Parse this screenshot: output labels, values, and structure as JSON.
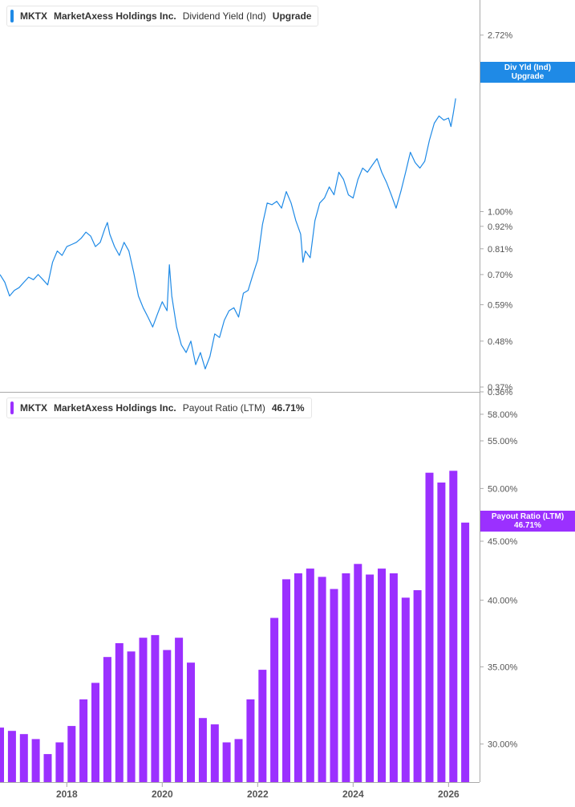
{
  "colors": {
    "yield_line": "#1f8ae6",
    "payout_bar": "#9b30ff",
    "axis_text": "#555555",
    "axis_line": "#aaaaaa"
  },
  "top_panel": {
    "legend": {
      "ticker": "MKTX",
      "company": "MarketAxess Holdings Inc.",
      "metric": "Dividend Yield (Ind)",
      "action": "Upgrade"
    },
    "last_tag": {
      "line1": "Div Yld (Ind)",
      "line2": "Upgrade"
    }
  },
  "bottom_panel": {
    "legend": {
      "ticker": "MKTX",
      "company": "MarketAxess Holdings Inc.",
      "metric": "Payout Ratio (LTM)",
      "value": "46.71%"
    },
    "last_tag": {
      "line1": "Payout Ratio (LTM)",
      "line2": "46.71%"
    }
  },
  "chart_data": [
    {
      "type": "line",
      "series": [
        {
          "name": "Dividend Yield (Ind)",
          "values": [
            [
              2016.6,
              0.7
            ],
            [
              2016.7,
              0.67
            ],
            [
              2016.8,
              0.62
            ],
            [
              2016.9,
              0.64
            ],
            [
              2017.0,
              0.65
            ],
            [
              2017.1,
              0.67
            ],
            [
              2017.2,
              0.69
            ],
            [
              2017.3,
              0.68
            ],
            [
              2017.4,
              0.7
            ],
            [
              2017.5,
              0.68
            ],
            [
              2017.6,
              0.66
            ],
            [
              2017.7,
              0.75
            ],
            [
              2017.8,
              0.8
            ],
            [
              2017.9,
              0.78
            ],
            [
              2018.0,
              0.82
            ],
            [
              2018.1,
              0.83
            ],
            [
              2018.2,
              0.84
            ],
            [
              2018.3,
              0.86
            ],
            [
              2018.4,
              0.89
            ],
            [
              2018.5,
              0.87
            ],
            [
              2018.6,
              0.82
            ],
            [
              2018.7,
              0.84
            ],
            [
              2018.8,
              0.91
            ],
            [
              2018.85,
              0.94
            ],
            [
              2018.9,
              0.88
            ],
            [
              2019.0,
              0.82
            ],
            [
              2019.1,
              0.78
            ],
            [
              2019.2,
              0.84
            ],
            [
              2019.3,
              0.8
            ],
            [
              2019.4,
              0.71
            ],
            [
              2019.5,
              0.62
            ],
            [
              2019.6,
              0.58
            ],
            [
              2019.7,
              0.55
            ],
            [
              2019.8,
              0.52
            ],
            [
              2019.9,
              0.56
            ],
            [
              2020.0,
              0.6
            ],
            [
              2020.1,
              0.57
            ],
            [
              2020.15,
              0.74
            ],
            [
              2020.2,
              0.62
            ],
            [
              2020.3,
              0.52
            ],
            [
              2020.4,
              0.47
            ],
            [
              2020.5,
              0.45
            ],
            [
              2020.6,
              0.48
            ],
            [
              2020.7,
              0.42
            ],
            [
              2020.8,
              0.45
            ],
            [
              2020.9,
              0.41
            ],
            [
              2021.0,
              0.44
            ],
            [
              2021.1,
              0.5
            ],
            [
              2021.2,
              0.49
            ],
            [
              2021.3,
              0.54
            ],
            [
              2021.4,
              0.57
            ],
            [
              2021.5,
              0.58
            ],
            [
              2021.6,
              0.55
            ],
            [
              2021.7,
              0.63
            ],
            [
              2021.8,
              0.64
            ],
            [
              2021.9,
              0.7
            ],
            [
              2022.0,
              0.76
            ],
            [
              2022.1,
              0.93
            ],
            [
              2022.2,
              1.05
            ],
            [
              2022.3,
              1.04
            ],
            [
              2022.4,
              1.06
            ],
            [
              2022.5,
              1.02
            ],
            [
              2022.6,
              1.12
            ],
            [
              2022.7,
              1.05
            ],
            [
              2022.8,
              0.95
            ],
            [
              2022.9,
              0.88
            ],
            [
              2022.95,
              0.75
            ],
            [
              2023.0,
              0.8
            ],
            [
              2023.1,
              0.77
            ],
            [
              2023.2,
              0.95
            ],
            [
              2023.3,
              1.05
            ],
            [
              2023.4,
              1.08
            ],
            [
              2023.5,
              1.15
            ],
            [
              2023.6,
              1.1
            ],
            [
              2023.7,
              1.25
            ],
            [
              2023.8,
              1.2
            ],
            [
              2023.9,
              1.1
            ],
            [
              2024.0,
              1.08
            ],
            [
              2024.1,
              1.2
            ],
            [
              2024.2,
              1.28
            ],
            [
              2024.3,
              1.25
            ],
            [
              2024.4,
              1.3
            ],
            [
              2024.5,
              1.35
            ],
            [
              2024.6,
              1.25
            ],
            [
              2024.7,
              1.18
            ],
            [
              2024.8,
              1.1
            ],
            [
              2024.9,
              1.02
            ],
            [
              2025.0,
              1.12
            ],
            [
              2025.1,
              1.25
            ],
            [
              2025.2,
              1.4
            ],
            [
              2025.3,
              1.32
            ],
            [
              2025.4,
              1.28
            ],
            [
              2025.5,
              1.33
            ],
            [
              2025.6,
              1.5
            ],
            [
              2025.7,
              1.65
            ],
            [
              2025.8,
              1.72
            ],
            [
              2025.9,
              1.68
            ],
            [
              2026.0,
              1.7
            ],
            [
              2026.05,
              1.62
            ],
            [
              2026.1,
              1.75
            ],
            [
              2026.15,
              1.9
            ]
          ]
        }
      ],
      "y_scale": "log",
      "ylim": [
        0.36,
        3.2
      ],
      "xlim": [
        2016.6,
        2026.65
      ],
      "y_ticks": [
        "2.72%",
        "1.00%",
        "0.92%",
        "0.81%",
        "0.70%",
        "0.59%",
        "0.48%",
        "0.37%",
        "0.36%"
      ],
      "y_tick_values": [
        2.72,
        1.0,
        0.92,
        0.81,
        0.7,
        0.59,
        0.48,
        0.37,
        0.36
      ],
      "last_value_hidden": "2.00%",
      "grid": false
    },
    {
      "type": "bar",
      "series": [
        {
          "name": "Payout Ratio (LTM)",
          "values": [
            [
              2016.6,
              31.0
            ],
            [
              2016.85,
              30.8
            ],
            [
              2017.1,
              30.6
            ],
            [
              2017.35,
              30.3
            ],
            [
              2017.6,
              29.4
            ],
            [
              2017.85,
              30.1
            ],
            [
              2018.1,
              31.1
            ],
            [
              2018.35,
              32.8
            ],
            [
              2018.6,
              33.9
            ],
            [
              2018.85,
              35.7
            ],
            [
              2019.1,
              36.7
            ],
            [
              2019.35,
              36.1
            ],
            [
              2019.6,
              37.1
            ],
            [
              2019.85,
              37.3
            ],
            [
              2020.1,
              36.2
            ],
            [
              2020.35,
              37.1
            ],
            [
              2020.6,
              35.3
            ],
            [
              2020.85,
              31.6
            ],
            [
              2021.1,
              31.2
            ],
            [
              2021.35,
              30.1
            ],
            [
              2021.6,
              30.3
            ],
            [
              2021.85,
              32.8
            ],
            [
              2022.1,
              34.8
            ],
            [
              2022.35,
              38.6
            ],
            [
              2022.6,
              41.7
            ],
            [
              2022.85,
              42.2
            ],
            [
              2023.1,
              42.6
            ],
            [
              2023.35,
              41.9
            ],
            [
              2023.6,
              40.9
            ],
            [
              2023.85,
              42.2
            ],
            [
              2024.1,
              43.0
            ],
            [
              2024.35,
              42.1
            ],
            [
              2024.6,
              42.6
            ],
            [
              2024.85,
              42.2
            ],
            [
              2025.1,
              40.2
            ],
            [
              2025.35,
              40.8
            ],
            [
              2025.6,
              51.6
            ],
            [
              2025.85,
              50.6
            ],
            [
              2026.1,
              51.8
            ],
            [
              2026.1,
              46.71
            ]
          ]
        }
      ],
      "bar_values_ordered": [
        31.0,
        30.8,
        30.6,
        30.3,
        29.4,
        30.1,
        31.1,
        32.8,
        33.9,
        35.7,
        36.7,
        36.1,
        37.1,
        37.3,
        36.2,
        37.1,
        35.3,
        31.6,
        31.2,
        30.1,
        30.3,
        32.8,
        34.8,
        38.6,
        41.7,
        42.2,
        42.6,
        41.9,
        40.9,
        42.2,
        43.0,
        42.1,
        42.6,
        42.2,
        40.2,
        40.8,
        51.6,
        50.6,
        51.8,
        46.71
      ],
      "y_scale": "log",
      "ylim": [
        27.8,
        59.5
      ],
      "y_ticks": [
        "58.00%",
        "55.00%",
        "50.00%",
        "45.00%",
        "40.00%",
        "35.00%",
        "30.00%"
      ],
      "y_tick_values": [
        58,
        55,
        50,
        45,
        40,
        35,
        30
      ],
      "x_ticks": [
        "2018",
        "2020",
        "2022",
        "2024",
        "2026"
      ],
      "x_tick_values": [
        2018,
        2020,
        2022,
        2024,
        2026
      ],
      "grid": false
    }
  ]
}
